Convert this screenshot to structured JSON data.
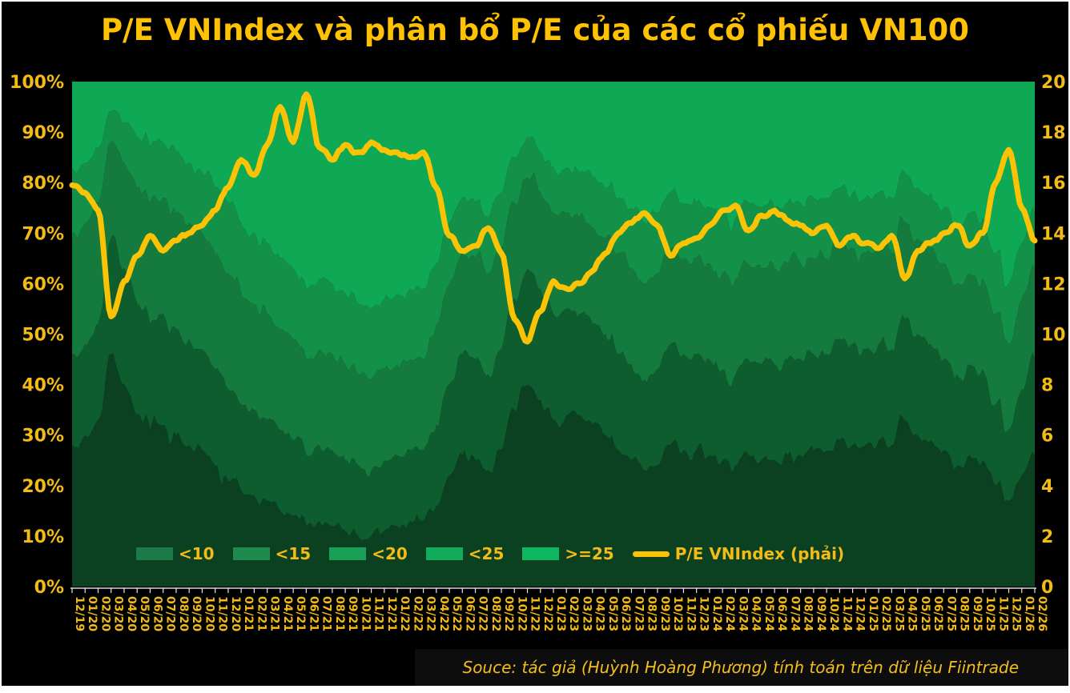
{
  "title": "P/E VNIndex và phân bổ P/E của các cổ phiếu VN100",
  "source": "Souce: tác giả (Huỳnh Hoàng Phương) tính toán trên dữ liệu Fiintrade",
  "colors": {
    "background": "#000000",
    "frame": "#ffffff",
    "title_text": "#FFC103",
    "axis_text": "#F2BB16",
    "legend_text": "#F2BB16",
    "tick": "#E6E6E6",
    "axis_line": "#D9D9D9",
    "line": "#FBC303"
  },
  "chart_data": {
    "type": "area",
    "stacked": "100%",
    "title": "P/E VNIndex và phân bổ P/E của các cổ phiếu VN100",
    "legend_position": "bottom-inside",
    "grid": false,
    "categories": [
      "12/19",
      "01/20",
      "02/20",
      "03/20",
      "04/20",
      "05/20",
      "06/20",
      "07/20",
      "08/20",
      "09/20",
      "10/20",
      "11/20",
      "12/20",
      "01/21",
      "02/21",
      "03/21",
      "04/21",
      "05/21",
      "06/21",
      "07/21",
      "08/21",
      "09/21",
      "10/21",
      "11/21",
      "12/21",
      "01/22",
      "02/22",
      "03/22",
      "04/22",
      "05/22",
      "06/22",
      "07/22",
      "08/22",
      "09/22",
      "10/22",
      "11/22",
      "12/22",
      "01/23",
      "02/23",
      "03/23",
      "04/23",
      "05/23",
      "06/23",
      "07/23",
      "08/23",
      "09/23",
      "10/23",
      "11/23",
      "12/23",
      "01/24",
      "02/24",
      "03/24",
      "04/24",
      "05/24",
      "06/24",
      "07/24",
      "08/24",
      "09/24",
      "10/24",
      "11/24",
      "12/24",
      "01/25",
      "02/25",
      "03/25",
      "04/25",
      "05/25",
      "06/25",
      "07/25",
      "08/25",
      "09/25",
      "10/25",
      "11/25",
      "12/25",
      "01/26",
      "02/26"
    ],
    "left_axis": {
      "min": 0,
      "max": 100,
      "step": 10,
      "labels": [
        "0%",
        "10%",
        "20%",
        "30%",
        "40%",
        "50%",
        "60%",
        "70%",
        "80%",
        "90%",
        "100%"
      ]
    },
    "right_axis": {
      "min": 0,
      "max": 20,
      "step": 2,
      "labels": [
        "0",
        "2",
        "4",
        "6",
        "8",
        "10",
        "12",
        "14",
        "16",
        "18",
        "20"
      ]
    },
    "bands": [
      {
        "label": "<10",
        "color": "#0B4121",
        "legend_color": "#1B7A45",
        "cum": [
          28,
          30,
          33,
          46,
          40,
          34,
          31,
          32,
          30,
          28,
          27,
          24,
          21,
          19,
          18,
          17,
          15,
          14,
          12,
          13,
          12,
          11,
          10,
          10,
          11,
          12,
          13,
          13,
          16,
          22,
          26,
          25,
          23,
          27,
          35,
          40,
          37,
          33,
          34,
          34,
          32,
          30,
          27,
          25,
          23,
          24,
          28,
          27,
          27,
          26,
          25,
          24,
          26,
          25,
          25,
          26,
          26,
          27,
          27,
          29,
          28,
          28,
          29,
          28,
          33,
          30,
          29,
          27,
          24,
          26,
          25,
          20,
          17,
          22,
          26
        ]
      },
      {
        "label": "<15",
        "color": "#0E5D2F",
        "legend_color": "#1E8A4E",
        "cum": [
          46,
          48,
          52,
          69,
          63,
          56,
          52,
          54,
          51,
          49,
          47,
          43,
          39,
          36,
          35,
          33,
          31,
          29,
          26,
          28,
          27,
          25,
          24,
          23,
          25,
          26,
          27,
          27,
          32,
          40,
          46,
          45,
          42,
          47,
          57,
          63,
          59,
          54,
          55,
          54,
          52,
          50,
          46,
          44,
          41,
          43,
          48,
          46,
          46,
          45,
          43,
          42,
          45,
          44,
          44,
          45,
          45,
          46,
          46,
          49,
          48,
          47,
          48,
          47,
          53,
          50,
          48,
          45,
          42,
          44,
          43,
          36,
          31,
          39,
          45
        ]
      },
      {
        "label": "<20",
        "color": "#147A3E",
        "legend_color": "#18A057",
        "cum": [
          70,
          72,
          76,
          88,
          84,
          79,
          76,
          77,
          74,
          72,
          70,
          66,
          62,
          58,
          56,
          54,
          51,
          49,
          45,
          47,
          46,
          44,
          42,
          41,
          43,
          44,
          45,
          45,
          52,
          60,
          66,
          65,
          62,
          67,
          76,
          81,
          78,
          74,
          74,
          73,
          71,
          69,
          66,
          63,
          60,
          62,
          67,
          65,
          65,
          64,
          62,
          61,
          64,
          63,
          63,
          64,
          64,
          65,
          65,
          68,
          67,
          66,
          67,
          66,
          72,
          69,
          67,
          64,
          60,
          62,
          61,
          54,
          48,
          57,
          63
        ]
      },
      {
        "label": "<25",
        "color": "#149149",
        "legend_color": "#12AB5B",
        "cum": [
          83,
          84,
          87,
          94,
          92,
          89,
          87,
          88,
          86,
          84,
          82,
          79,
          76,
          72,
          70,
          68,
          65,
          63,
          59,
          61,
          60,
          58,
          56,
          55,
          57,
          58,
          59,
          59,
          64,
          72,
          77,
          76,
          73,
          78,
          85,
          89,
          86,
          83,
          83,
          82,
          81,
          79,
          77,
          75,
          72,
          74,
          78,
          76,
          76,
          75,
          74,
          73,
          76,
          75,
          75,
          76,
          76,
          77,
          77,
          79,
          78,
          77,
          78,
          77,
          82,
          79,
          78,
          75,
          72,
          74,
          73,
          66,
          60,
          68,
          74
        ]
      },
      {
        "label": ">=25",
        "color": "#0FA956",
        "legend_color": "#0CB75F",
        "cum": null
      }
    ],
    "line": {
      "label": "P/E VNIndex (phải)",
      "color": "#FBC303",
      "axis": "right",
      "values": [
        15.9,
        15.6,
        14.9,
        10.7,
        12.1,
        13.1,
        13.9,
        13.3,
        13.7,
        14.0,
        14.3,
        14.9,
        15.8,
        16.9,
        16.3,
        17.5,
        19.0,
        17.6,
        19.5,
        17.4,
        16.9,
        17.5,
        17.2,
        17.6,
        17.3,
        17.2,
        17.0,
        17.2,
        15.8,
        13.9,
        13.3,
        13.5,
        14.2,
        13.2,
        10.6,
        9.7,
        10.9,
        12.1,
        11.8,
        12.0,
        12.5,
        13.2,
        14.0,
        14.4,
        14.8,
        14.3,
        13.1,
        13.6,
        13.8,
        14.3,
        14.9,
        15.1,
        14.1,
        14.7,
        14.9,
        14.5,
        14.3,
        14.0,
        14.3,
        13.5,
        13.9,
        13.6,
        13.4,
        13.9,
        12.2,
        13.3,
        13.6,
        14.0,
        14.3,
        13.5,
        14.0,
        16.0,
        17.3,
        15.0,
        13.7
      ]
    }
  }
}
